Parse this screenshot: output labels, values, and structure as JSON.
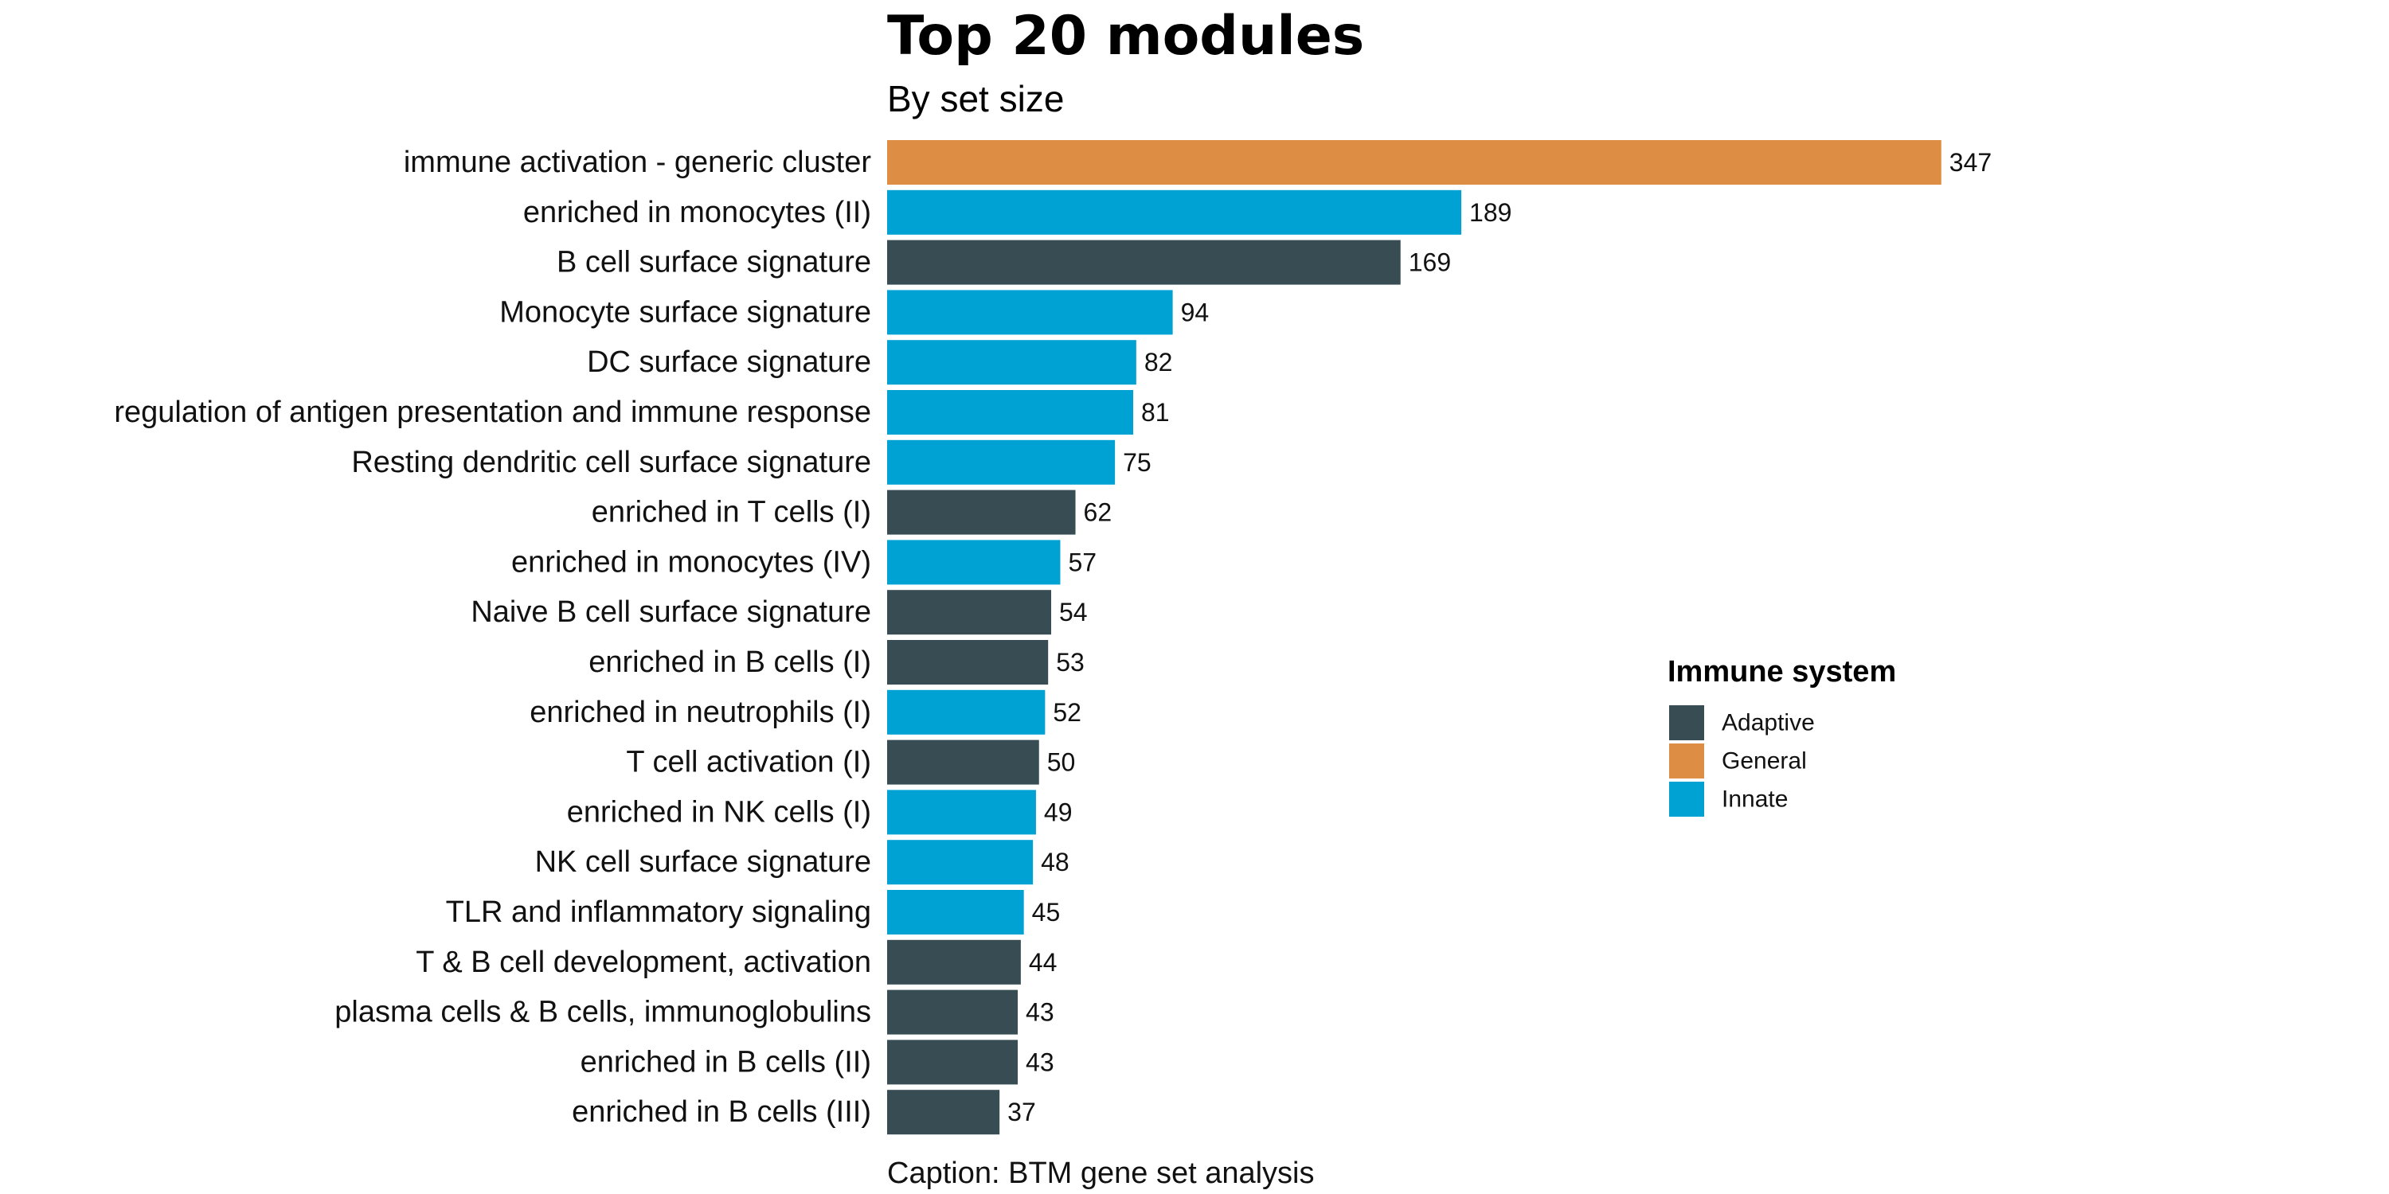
{
  "chart_data": {
    "type": "bar",
    "orientation": "horizontal",
    "title": "Top 20 modules",
    "subtitle": "By set size",
    "caption": "Caption: BTM gene set analysis",
    "xlabel": "",
    "ylabel": "",
    "xlim": [
      0,
      347
    ],
    "grid": false,
    "legend": {
      "title": "Immune system",
      "placement": "right",
      "entries": [
        {
          "name": "Adaptive",
          "color": "#374c53"
        },
        {
          "name": "General",
          "color": "#de8e44"
        },
        {
          "name": "Innate",
          "color": "#00a2d4"
        }
      ]
    },
    "categories": [
      "immune activation - generic cluster",
      "enriched in monocytes (II)",
      "B cell surface signature",
      "Monocyte surface signature",
      "DC surface signature",
      "regulation of antigen presentation and immune response",
      "Resting dendritic cell surface signature",
      "enriched in T cells (I)",
      "enriched in monocytes (IV)",
      "Naive B cell surface signature",
      "enriched in B cells (I)",
      "enriched in neutrophils (I)",
      "T cell activation (I)",
      "enriched in NK cells (I)",
      "NK cell surface signature",
      "TLR and inflammatory signaling",
      "T & B cell development, activation",
      "plasma cells & B cells, immunoglobulins",
      "enriched in B cells (II)",
      "enriched in B cells (III)"
    ],
    "values": [
      347,
      189,
      169,
      94,
      82,
      81,
      75,
      62,
      57,
      54,
      53,
      52,
      50,
      49,
      48,
      45,
      44,
      43,
      43,
      37
    ],
    "groups": [
      "General",
      "Innate",
      "Adaptive",
      "Innate",
      "Innate",
      "Innate",
      "Innate",
      "Adaptive",
      "Innate",
      "Adaptive",
      "Adaptive",
      "Innate",
      "Adaptive",
      "Innate",
      "Innate",
      "Innate",
      "Adaptive",
      "Adaptive",
      "Adaptive",
      "Adaptive"
    ]
  }
}
